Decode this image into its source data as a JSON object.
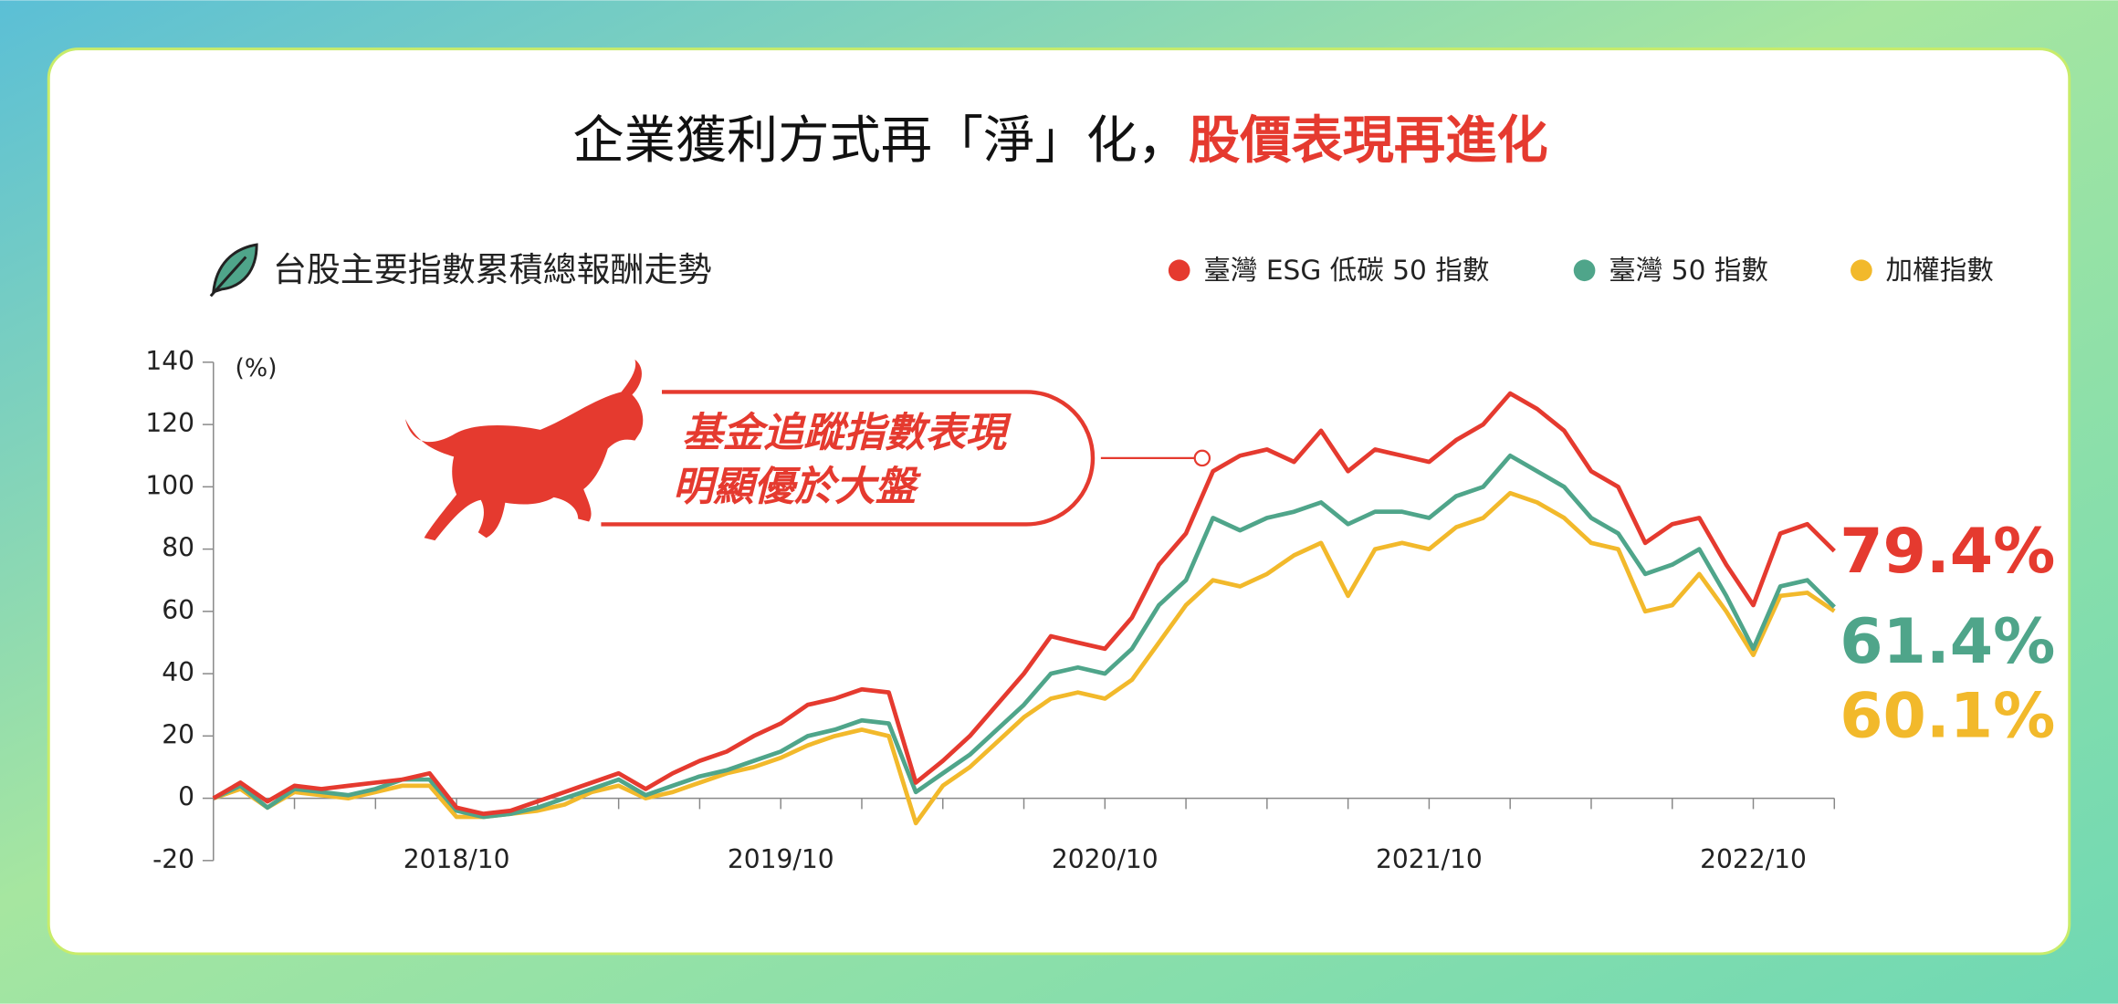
{
  "header": {
    "title_black": "企業獲利方式再「淨」化，",
    "title_red": "股價表現再進化"
  },
  "chart_data": {
    "type": "line",
    "subtitle": "台股主要指數累積總報酬走勢",
    "y_unit": "(%)",
    "annotation": [
      "基金追蹤指數表現",
      "明顯優於大盤"
    ],
    "x": [
      "2018/01",
      "2018/02",
      "2018/03",
      "2018/04",
      "2018/05",
      "2018/06",
      "2018/07",
      "2018/08",
      "2018/09",
      "2018/10",
      "2018/11",
      "2018/12",
      "2019/01",
      "2019/02",
      "2019/03",
      "2019/04",
      "2019/05",
      "2019/06",
      "2019/07",
      "2019/08",
      "2019/09",
      "2019/10",
      "2019/11",
      "2019/12",
      "2020/01",
      "2020/02",
      "2020/03",
      "2020/04",
      "2020/05",
      "2020/06",
      "2020/07",
      "2020/08",
      "2020/09",
      "2020/10",
      "2020/11",
      "2020/12",
      "2021/01",
      "2021/02",
      "2021/03",
      "2021/04",
      "2021/05",
      "2021/06",
      "2021/07",
      "2021/08",
      "2021/09",
      "2021/10",
      "2021/11",
      "2021/12",
      "2022/01",
      "2022/02",
      "2022/03",
      "2022/04",
      "2022/05",
      "2022/06",
      "2022/07",
      "2022/08",
      "2022/09",
      "2022/10",
      "2022/11",
      "2022/12",
      "2023/01"
    ],
    "xticks": [
      "2018/10",
      "2019/10",
      "2020/10",
      "2021/10",
      "2022/10"
    ],
    "ylim": [
      -20,
      140
    ],
    "yticks": [
      -20,
      0,
      20,
      40,
      60,
      80,
      100,
      120,
      140
    ],
    "series": [
      {
        "name": "臺灣 ESG 低碳 50 指數",
        "color": "#e53a2f",
        "values": [
          0,
          5,
          -1,
          4,
          3,
          4,
          5,
          6,
          8,
          -3,
          -5,
          -4,
          -1,
          2,
          5,
          8,
          3,
          8,
          12,
          15,
          20,
          24,
          30,
          32,
          35,
          34,
          5,
          12,
          20,
          30,
          40,
          52,
          50,
          48,
          58,
          75,
          85,
          105,
          110,
          112,
          108,
          118,
          105,
          112,
          110,
          108,
          115,
          120,
          130,
          125,
          118,
          105,
          100,
          82,
          88,
          90,
          75,
          62,
          85,
          88,
          79.4
        ],
        "value_labels": [
          null,
          null,
          null,
          null,
          null,
          null,
          null,
          null,
          null,
          null,
          null,
          null,
          null,
          null,
          null,
          null,
          null,
          null,
          null,
          null,
          null,
          null,
          null,
          null,
          null,
          null,
          null,
          null,
          null,
          null,
          null,
          null,
          null,
          null,
          null,
          null,
          null,
          null,
          null,
          null,
          null,
          null,
          null,
          null,
          null,
          null,
          null,
          null,
          null,
          null,
          null,
          null,
          null,
          null,
          null,
          null,
          null,
          null,
          null,
          null,
          "79.4%"
        ]
      },
      {
        "name": "臺灣 50 指數",
        "color": "#4fa58a",
        "values": [
          0,
          4,
          -3,
          3,
          2,
          1,
          3,
          6,
          6,
          -4,
          -6,
          -5,
          -3,
          0,
          3,
          6,
          1,
          4,
          7,
          9,
          12,
          15,
          20,
          22,
          25,
          24,
          2,
          8,
          14,
          22,
          30,
          40,
          42,
          40,
          48,
          62,
          70,
          90,
          86,
          90,
          92,
          95,
          88,
          92,
          92,
          90,
          97,
          100,
          110,
          105,
          100,
          90,
          85,
          72,
          75,
          80,
          65,
          48,
          68,
          70,
          61.4
        ],
        "value_labels": [
          null,
          null,
          null,
          null,
          null,
          null,
          null,
          null,
          null,
          null,
          null,
          null,
          null,
          null,
          null,
          null,
          null,
          null,
          null,
          null,
          null,
          null,
          null,
          null,
          null,
          null,
          null,
          null,
          null,
          null,
          null,
          null,
          null,
          null,
          null,
          null,
          null,
          null,
          null,
          null,
          null,
          null,
          null,
          null,
          null,
          null,
          null,
          null,
          null,
          null,
          null,
          null,
          null,
          null,
          null,
          null,
          null,
          null,
          null,
          null,
          "61.4%"
        ]
      },
      {
        "name": "加權指數",
        "color": "#f2b92b",
        "values": [
          0,
          3,
          -3,
          2,
          1,
          0,
          2,
          4,
          4,
          -6,
          -6,
          -5,
          -4,
          -2,
          2,
          4,
          0,
          2,
          5,
          8,
          10,
          13,
          17,
          20,
          22,
          20,
          -8,
          4,
          10,
          18,
          26,
          32,
          34,
          32,
          38,
          50,
          62,
          70,
          68,
          72,
          78,
          82,
          65,
          80,
          82,
          80,
          87,
          90,
          98,
          95,
          90,
          82,
          80,
          60,
          62,
          72,
          60,
          46,
          65,
          66,
          60.1
        ],
        "value_labels": [
          null,
          null,
          null,
          null,
          null,
          null,
          null,
          null,
          null,
          null,
          null,
          null,
          null,
          null,
          null,
          null,
          null,
          null,
          null,
          null,
          null,
          null,
          null,
          null,
          null,
          null,
          null,
          null,
          null,
          null,
          null,
          null,
          null,
          null,
          null,
          null,
          null,
          null,
          null,
          null,
          null,
          null,
          null,
          null,
          null,
          null,
          null,
          null,
          null,
          null,
          null,
          null,
          null,
          null,
          null,
          null,
          null,
          null,
          null,
          null,
          "60.1%"
        ]
      }
    ]
  }
}
